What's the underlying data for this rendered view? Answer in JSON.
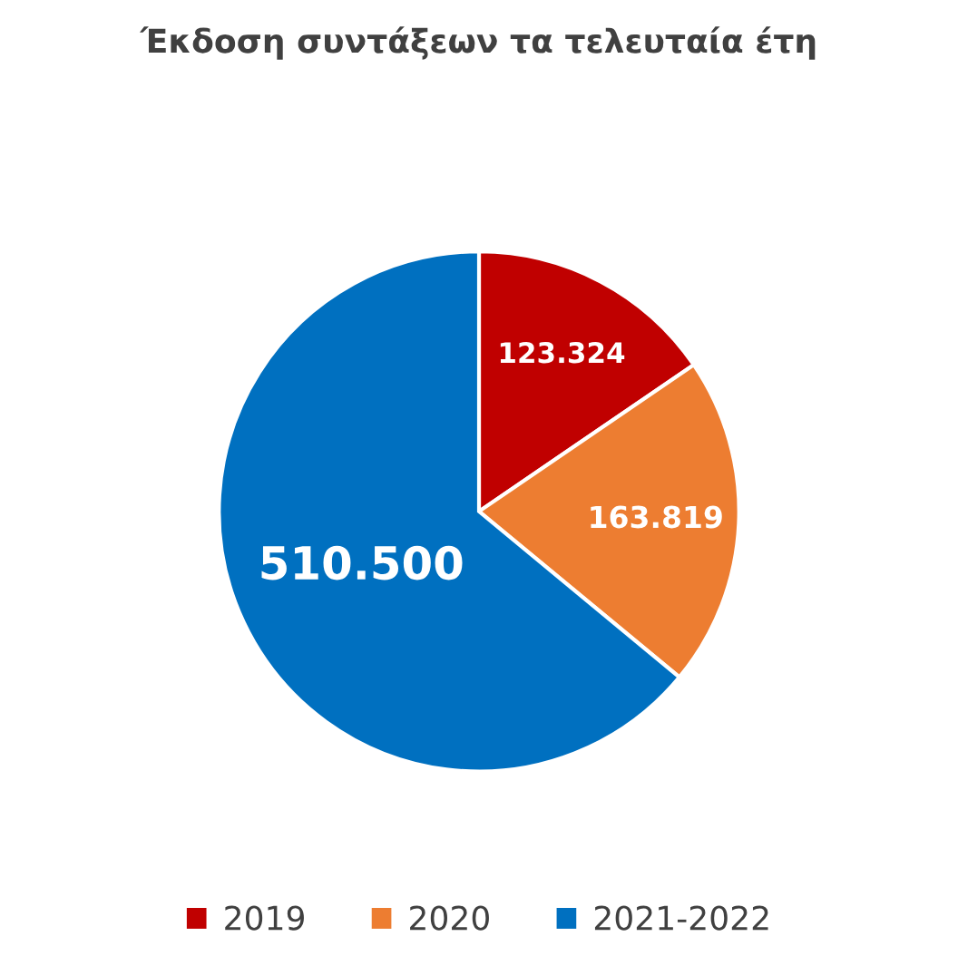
{
  "chart_data": {
    "type": "pie",
    "title": "Έκδοση συντάξεων τα τελευταία έτη",
    "categories": [
      "2019",
      "2020",
      "2021-2022"
    ],
    "values": [
      123324,
      163819,
      510500
    ],
    "value_labels": [
      "123.324",
      "163.819",
      "510.500"
    ],
    "colors": [
      "#c00000",
      "#ed7d31",
      "#0070c0"
    ],
    "legend": "bottom"
  }
}
